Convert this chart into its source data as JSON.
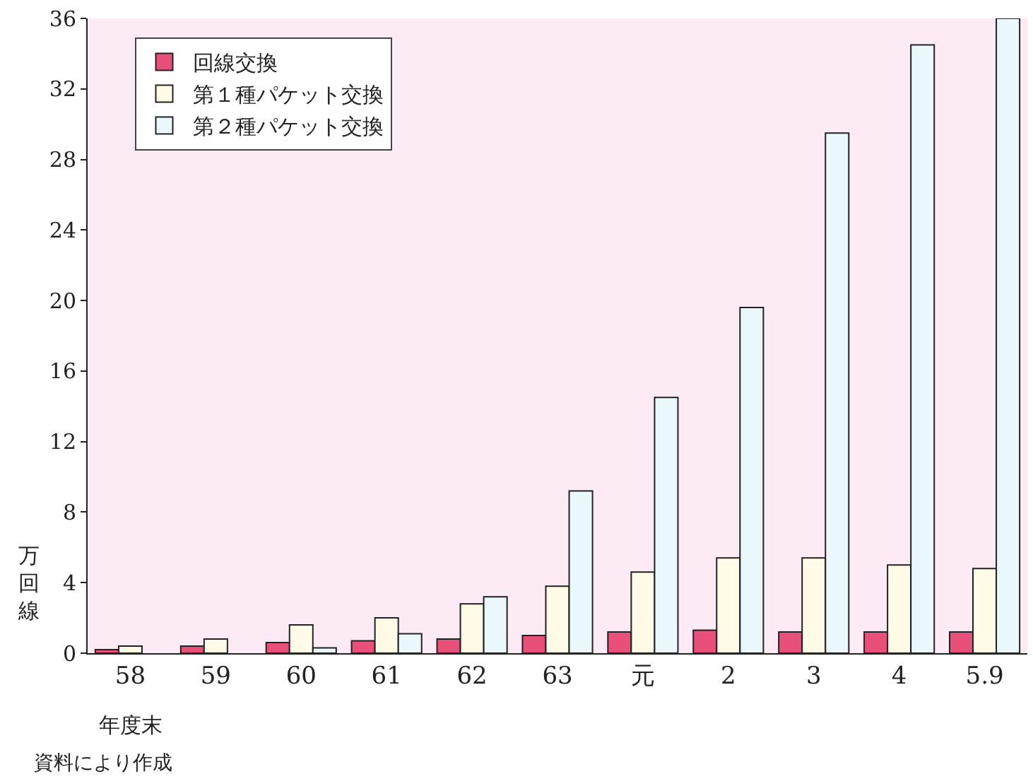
{
  "chart_data": {
    "type": "bar",
    "categories": [
      "58",
      "59",
      "60",
      "61",
      "62",
      "63",
      "元",
      "2",
      "3",
      "4",
      "5.9"
    ],
    "series": [
      {
        "name": "回線交換",
        "color": "#e8507a",
        "values": [
          0.2,
          0.4,
          0.6,
          0.7,
          0.8,
          1.0,
          1.2,
          1.3,
          1.2,
          1.2,
          1.2
        ]
      },
      {
        "name": "第１種パケット交換",
        "color": "#fffbe6",
        "values": [
          0.4,
          0.8,
          1.6,
          2.0,
          2.8,
          3.8,
          4.6,
          5.4,
          5.4,
          5.0,
          4.8
        ]
      },
      {
        "name": "第２種パケット交換",
        "color": "#eaf8fb",
        "values": [
          null,
          null,
          0.3,
          1.1,
          3.2,
          9.2,
          14.5,
          19.6,
          29.5,
          34.5,
          36
        ]
      }
    ],
    "xlabel": "年度末",
    "ylabel": "万回線",
    "ylim": [
      0,
      36
    ],
    "yticks": [
      0,
      4,
      8,
      12,
      16,
      20,
      24,
      28,
      32,
      36
    ],
    "grid": false,
    "legend": "top left",
    "annotations": [
      "資料により作成"
    ]
  }
}
